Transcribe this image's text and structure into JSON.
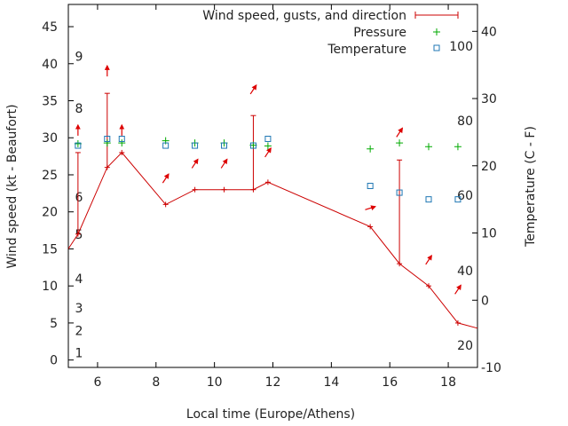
{
  "chart_data": {
    "type": "line",
    "xlabel": "Local time (Europe/Athens)",
    "ylabel_left": "Wind speed (kt - Beaufort)",
    "ylabel_right": "Temperature (C - F)",
    "xlim": [
      5,
      19
    ],
    "ylim_left": [
      -1,
      48
    ],
    "ylim_right": [
      -10,
      44
    ],
    "x_ticks": [
      6,
      8,
      10,
      12,
      14,
      16,
      18
    ],
    "y_left_ticks": [
      0,
      5,
      10,
      15,
      20,
      25,
      30,
      35,
      40,
      45
    ],
    "y_right_ticks": [
      -10,
      0,
      10,
      20,
      30,
      40
    ],
    "beaufort_labels": [
      {
        "label": "1",
        "kt": 1
      },
      {
        "label": "2",
        "kt": 4
      },
      {
        "label": "3",
        "kt": 7
      },
      {
        "label": "4",
        "kt": 11
      },
      {
        "label": "5",
        "kt": 17
      },
      {
        "label": "6",
        "kt": 22
      },
      {
        "label": "8",
        "kt": 34
      },
      {
        "label": "9",
        "kt": 41
      }
    ],
    "fahrenheit_labels": [
      {
        "label": "20",
        "c": -6.7
      },
      {
        "label": "40",
        "c": 4.4
      },
      {
        "label": "60",
        "c": 15.6
      },
      {
        "label": "80",
        "c": 26.7
      },
      {
        "label": "100",
        "c": 37.8
      }
    ],
    "legend": [
      {
        "label": "Wind speed, gusts, and direction",
        "color": "#cc0000"
      },
      {
        "label": "Pressure",
        "color": "#00aa00"
      },
      {
        "label": "Temperature",
        "color": "#1f77b4"
      }
    ],
    "wind": {
      "x": [
        5,
        5.33,
        6.33,
        6.83,
        8.33,
        9.33,
        10.33,
        11.33,
        11.83,
        15.33,
        16.33,
        17.33,
        18.33,
        19
      ],
      "speed": [
        15,
        17,
        26,
        28,
        21,
        23,
        23,
        23,
        24,
        18,
        13,
        10,
        5,
        4.3
      ]
    },
    "gusts": [
      {
        "x": 5.33,
        "low": 17,
        "high": 28
      },
      {
        "x": 6.33,
        "low": 26,
        "high": 36
      },
      {
        "x": 11.33,
        "low": 23,
        "high": 33
      },
      {
        "x": 16.33,
        "low": 13,
        "high": 27
      }
    ],
    "direction_arrows": [
      {
        "x": 5.33,
        "kt": 31,
        "dir": "up"
      },
      {
        "x": 6.33,
        "kt": 39,
        "dir": "up"
      },
      {
        "x": 6.83,
        "kt": 31,
        "dir": "up"
      },
      {
        "x": 8.33,
        "kt": 24.5,
        "dir": "up-right"
      },
      {
        "x": 9.33,
        "kt": 26.5,
        "dir": "up-right"
      },
      {
        "x": 10.33,
        "kt": 26.5,
        "dir": "up-right"
      },
      {
        "x": 11.33,
        "kt": 36.5,
        "dir": "up-right"
      },
      {
        "x": 11.83,
        "kt": 28,
        "dir": "up-right"
      },
      {
        "x": 15.33,
        "kt": 20.5,
        "dir": "right"
      },
      {
        "x": 16.33,
        "kt": 30.7,
        "dir": "up-right"
      },
      {
        "x": 17.33,
        "kt": 13.5,
        "dir": "up-right"
      },
      {
        "x": 18.33,
        "kt": 9.5,
        "dir": "up-right"
      }
    ],
    "pressure": {
      "x": [
        5.33,
        6.33,
        6.83,
        8.33,
        9.33,
        10.33,
        11.33,
        11.83,
        15.33,
        16.33,
        17.33,
        18.33
      ],
      "kt": [
        29.2,
        29.3,
        29.3,
        29.6,
        29.3,
        29.3,
        29.0,
        28.9,
        28.5,
        29.3,
        28.8,
        28.8
      ]
    },
    "temperature": {
      "x": [
        5.33,
        6.33,
        6.83,
        8.33,
        9.33,
        10.33,
        11.33,
        11.83,
        15.33,
        16.33,
        17.33,
        18.33
      ],
      "c": [
        23,
        24,
        24,
        23,
        23,
        23,
        23,
        24,
        17,
        16,
        15,
        15
      ]
    }
  }
}
